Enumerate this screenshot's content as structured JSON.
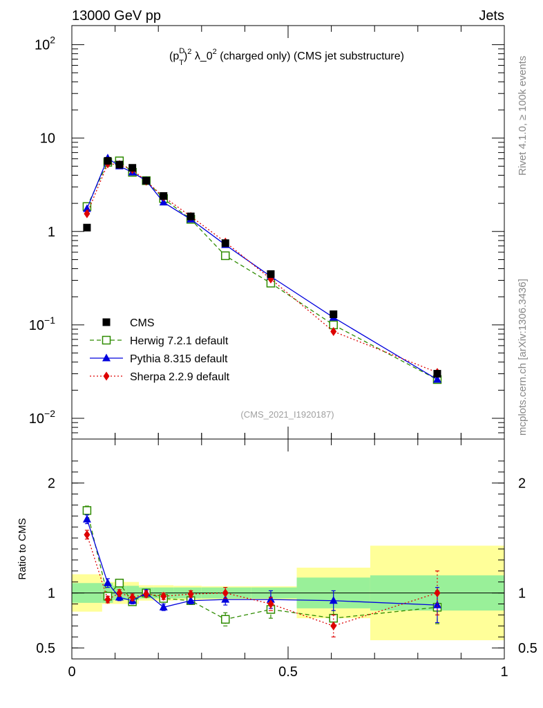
{
  "header": {
    "left_label": "13000 GeV pp",
    "right_label": "Jets"
  },
  "side_text": {
    "rivet": "Rivet 4.1.0, ≥ 100k events",
    "mcplots": "mcplots.cern.ch [arXiv:1306.3436]"
  },
  "analysis_id": "(CMS_2021_I1920187)",
  "chart_data": {
    "type": "line",
    "title": {
      "p": "(p",
      "sup_d": "D",
      "sub_t": "T",
      "close": ")",
      "sup_2a": "2",
      "mid": " λ_0",
      "sup_2b": "2",
      "rest": " (charged only) (CMS jet substructure)"
    },
    "x_axis": {
      "range": [
        0,
        1
      ],
      "ticks": [
        {
          "value": 0,
          "label": "0"
        },
        {
          "value": 0.5,
          "label": "0.5"
        },
        {
          "value": 1,
          "label": "1"
        }
      ]
    },
    "main_panel": {
      "y_scale": "log",
      "y_range": [
        0.006,
        160
      ],
      "y_ticks": [
        {
          "value": 0.01,
          "base": "10",
          "exp": "−2"
        },
        {
          "value": 0.1,
          "base": "10",
          "exp": "−1"
        },
        {
          "value": 1,
          "base": "1",
          "exp": ""
        },
        {
          "value": 10,
          "base": "10",
          "exp": ""
        },
        {
          "value": 100,
          "base": "10",
          "exp": "2"
        }
      ]
    },
    "ratio_panel": {
      "ylabel": "Ratio to CMS",
      "y_range": [
        0.4,
        2.4
      ],
      "y_ticks": [
        {
          "value": 0.5,
          "label": "0.5"
        },
        {
          "value": 1,
          "label": "1"
        },
        {
          "value": 2,
          "label": "2"
        }
      ]
    },
    "bins": [
      {
        "lo": 0.0,
        "hi": 0.07
      },
      {
        "lo": 0.07,
        "hi": 0.095
      },
      {
        "lo": 0.095,
        "hi": 0.125
      },
      {
        "lo": 0.125,
        "hi": 0.155
      },
      {
        "lo": 0.155,
        "hi": 0.19
      },
      {
        "lo": 0.19,
        "hi": 0.235
      },
      {
        "lo": 0.235,
        "hi": 0.3
      },
      {
        "lo": 0.3,
        "hi": 0.415
      },
      {
        "lo": 0.415,
        "hi": 0.52
      },
      {
        "lo": 0.52,
        "hi": 0.69
      },
      {
        "lo": 0.69,
        "hi": 1.0
      }
    ],
    "x": [
      0.035,
      0.083,
      0.11,
      0.14,
      0.172,
      0.212,
      0.275,
      0.355,
      0.46,
      0.605,
      0.845
    ],
    "series": [
      {
        "name": "CMS",
        "marker": "square-filled",
        "color": "#000000",
        "values": [
          1.1,
          5.7,
          5.2,
          4.8,
          3.5,
          2.4,
          1.45,
          0.75,
          0.35,
          0.13,
          0.03
        ],
        "band_inner": [
          0.09,
          0.09,
          0.065,
          0.065,
          0.05,
          0.05,
          0.05,
          0.05,
          0.05,
          0.14,
          0.16
        ],
        "band_outer": [
          0.17,
          0.1,
          0.1,
          0.1,
          0.07,
          0.07,
          0.065,
          0.06,
          0.06,
          0.23,
          0.43
        ]
      },
      {
        "name": "Herwig 7.2.1 default",
        "marker": "square-open",
        "color": "#2e8b00",
        "dash": "6,4",
        "values": [
          1.85,
          5.5,
          5.7,
          4.3,
          3.5,
          2.25,
          1.35,
          0.55,
          0.28,
          0.1,
          0.026
        ],
        "ratio": [
          1.75,
          0.97,
          1.09,
          0.92,
          1.0,
          0.95,
          0.93,
          0.76,
          0.85,
          0.77,
          0.87
        ],
        "ratio_err": [
          0.04,
          0.03,
          0.03,
          0.03,
          0.03,
          0.03,
          0.03,
          0.06,
          0.08,
          0.07,
          0.15
        ]
      },
      {
        "name": "Pythia 8.315 default",
        "marker": "triangle-filled",
        "color": "#0000dd",
        "dash": "",
        "values": [
          1.75,
          6.1,
          5.0,
          4.3,
          3.5,
          2.05,
          1.35,
          0.72,
          0.33,
          0.12,
          0.026
        ],
        "ratio": [
          1.67,
          1.09,
          0.96,
          0.93,
          1.0,
          0.87,
          0.93,
          0.94,
          0.94,
          0.93,
          0.89
        ],
        "ratio_err": [
          0.04,
          0.04,
          0.03,
          0.03,
          0.03,
          0.03,
          0.03,
          0.05,
          0.08,
          0.09,
          0.16
        ]
      },
      {
        "name": "Sherpa 2.2.9 default",
        "marker": "diamond-filled",
        "color": "#dd0000",
        "dash": "2,3",
        "values": [
          1.55,
          5.3,
          5.2,
          4.6,
          3.45,
          2.35,
          1.45,
          0.77,
          0.31,
          0.085,
          0.031
        ],
        "ratio": [
          1.53,
          0.94,
          1.0,
          0.96,
          0.99,
          0.97,
          0.99,
          1.0,
          0.9,
          0.7,
          1.0
        ],
        "ratio_err": [
          0.04,
          0.03,
          0.03,
          0.03,
          0.03,
          0.03,
          0.03,
          0.05,
          0.06,
          0.1,
          0.2
        ]
      }
    ]
  }
}
